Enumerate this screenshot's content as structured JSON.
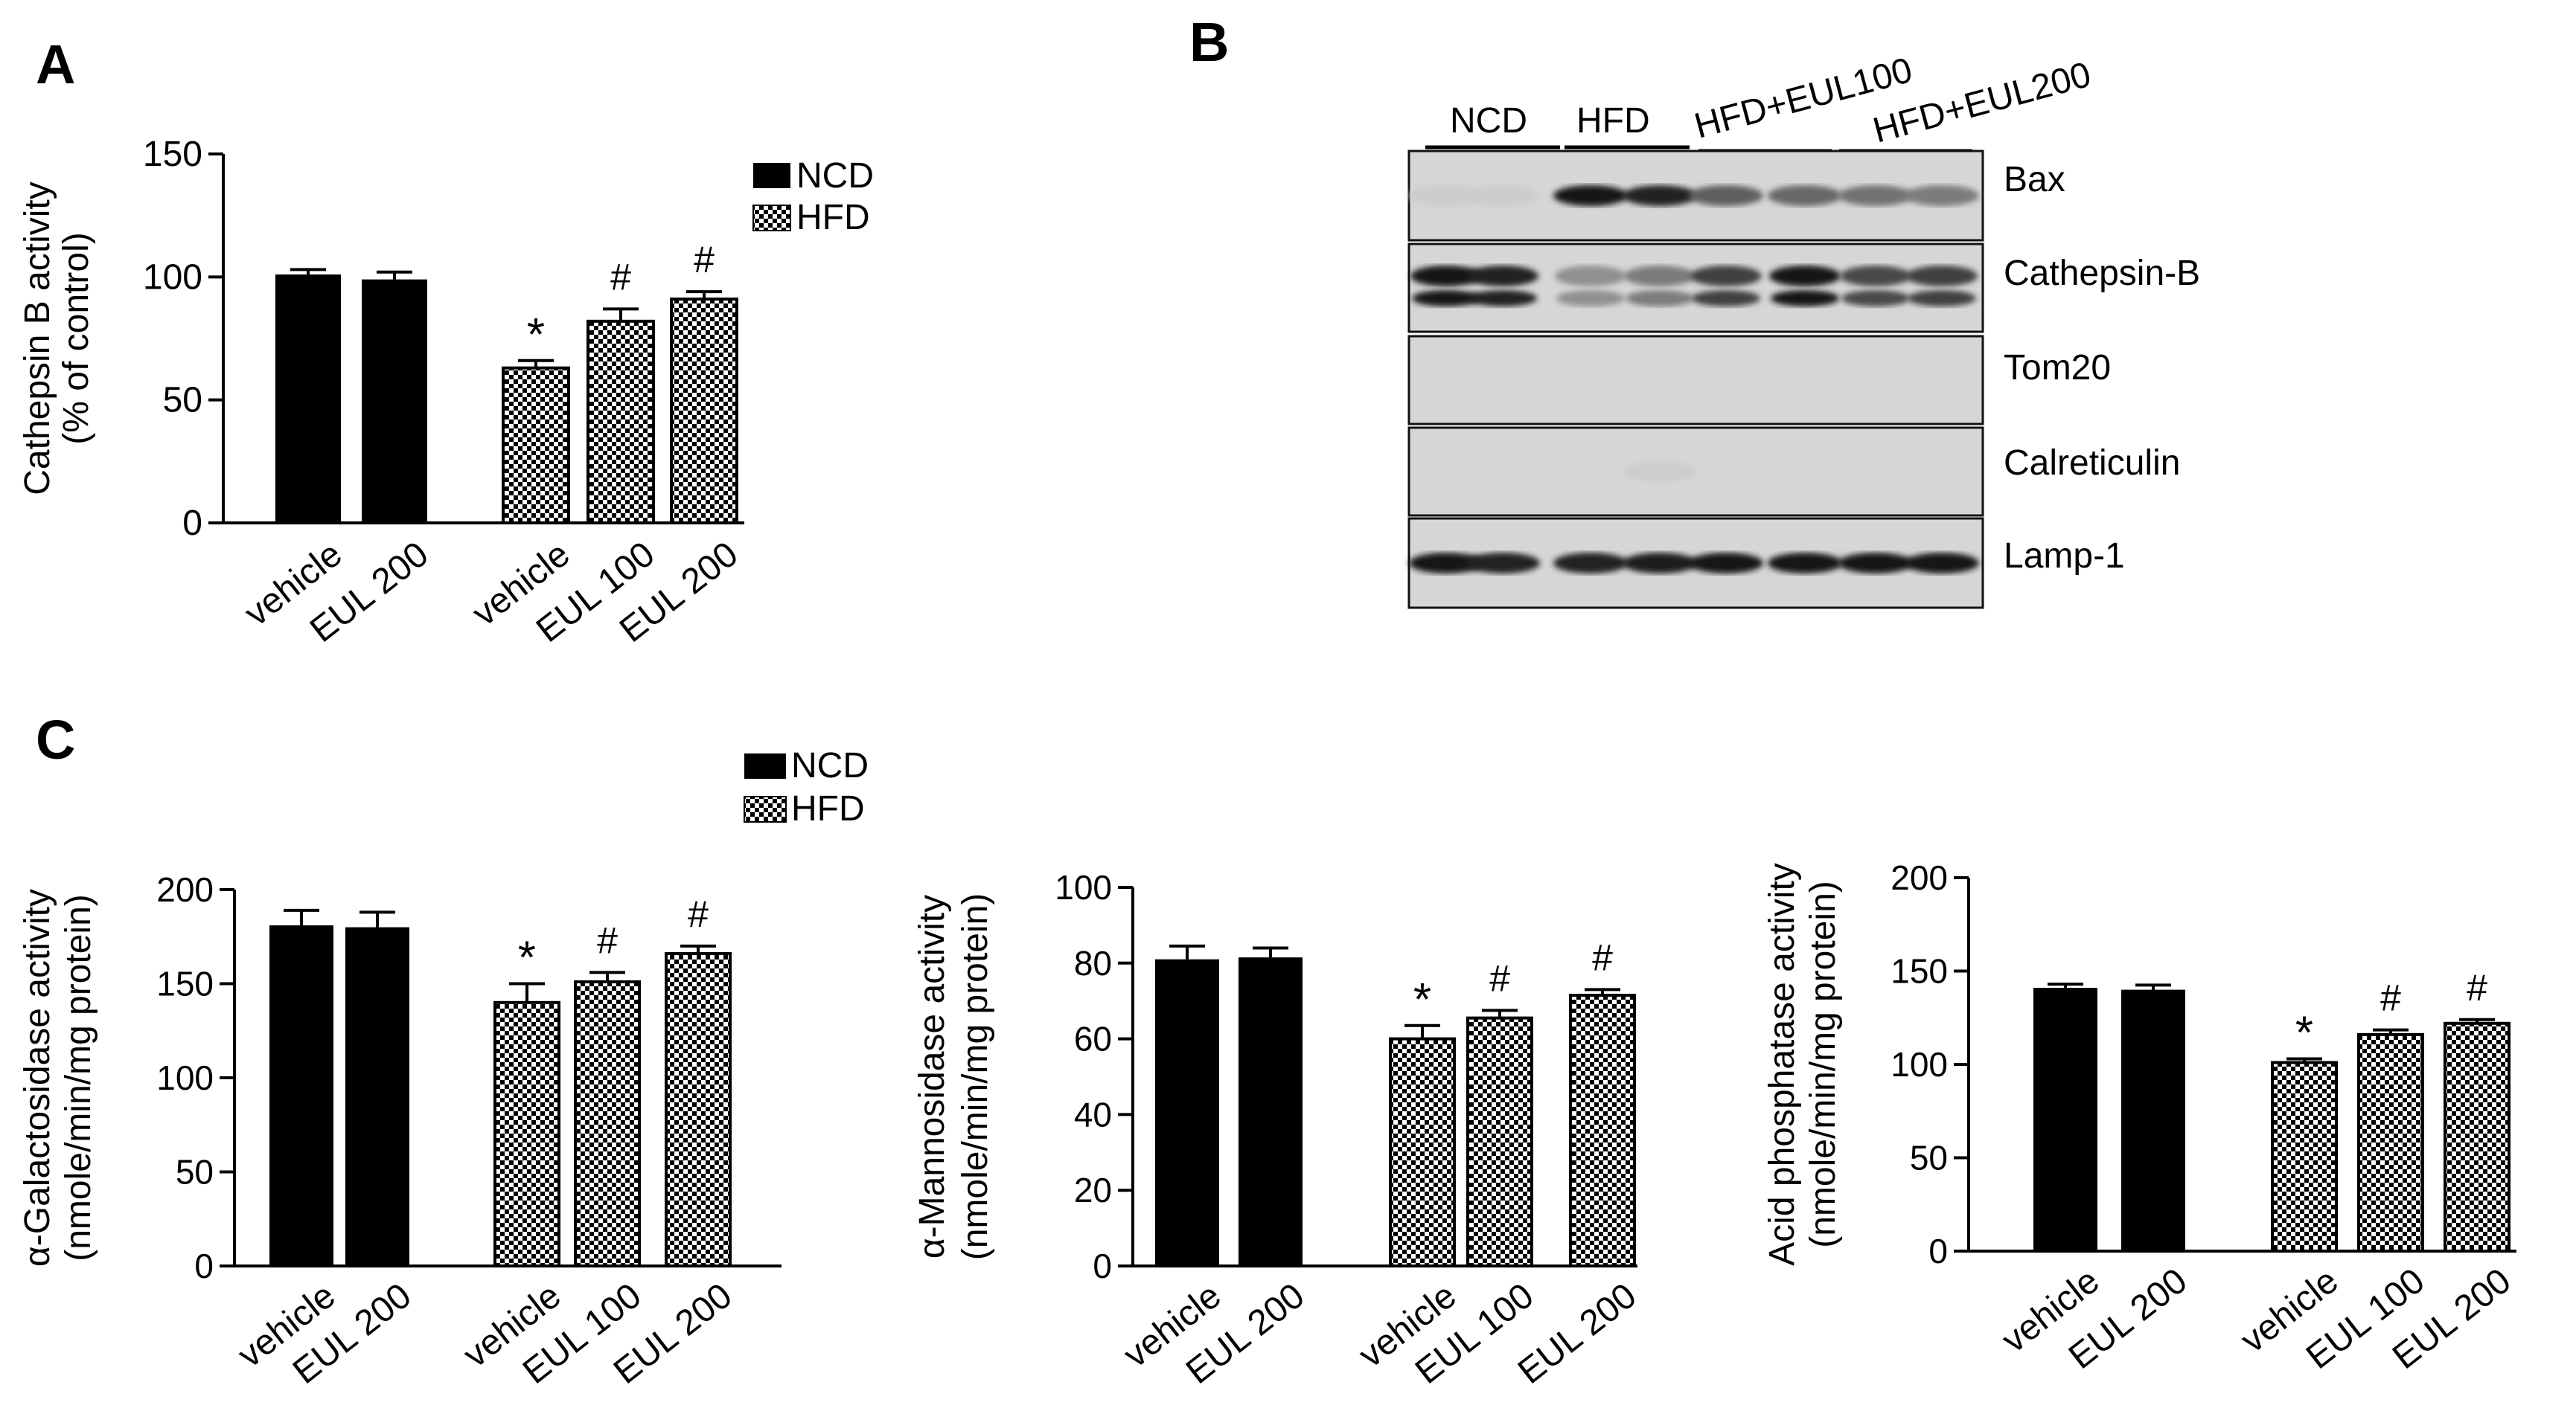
{
  "panels": {
    "a": "A",
    "b": "B",
    "c": "C"
  },
  "legend": {
    "ncd": "NCD",
    "hfd": "HFD"
  },
  "colors": {
    "ncd_fill": "#000000",
    "hfd_pattern": "black-white-checkerboard"
  },
  "chart_data": [
    {
      "id": "A",
      "type": "bar",
      "ylabel_line1": "Cathepsin B activity",
      "ylabel_line2": "(% of control)",
      "ylim": [
        0,
        150
      ],
      "yticks": [
        "0",
        "50",
        "100",
        "150"
      ],
      "categories": [
        "vehicle",
        "EUL 200",
        "vehicle",
        "EUL 100",
        "EUL 200"
      ],
      "groups": [
        "NCD",
        "NCD",
        "HFD",
        "HFD",
        "HFD"
      ],
      "values": [
        101,
        99,
        63,
        82,
        91
      ],
      "errors": [
        2,
        3,
        3,
        5,
        3
      ],
      "markers": [
        "",
        "",
        "*",
        "#",
        "#"
      ],
      "legend": "top-right"
    },
    {
      "id": "C1",
      "type": "bar",
      "ylabel_line1": "α-Galactosidase activity",
      "ylabel_line2": "(nmole/min/mg protein)",
      "ylim": [
        0,
        200
      ],
      "yticks": [
        "0",
        "50",
        "100",
        "150",
        "200"
      ],
      "categories": [
        "vehicle",
        "EUL 200",
        "vehicle",
        "EUL 100",
        "EUL 200"
      ],
      "groups": [
        "NCD",
        "NCD",
        "HFD",
        "HFD",
        "HFD"
      ],
      "values": [
        181,
        180,
        140,
        151,
        166
      ],
      "errors": [
        8,
        8,
        10,
        5,
        4
      ],
      "markers": [
        "",
        "",
        "*",
        "#",
        "#"
      ],
      "legend": "top-right"
    },
    {
      "id": "C2",
      "type": "bar",
      "ylabel_line1": "α-Mannosidase activity",
      "ylabel_line2": "(nmole/min/mg protein)",
      "ylim": [
        0,
        100
      ],
      "yticks": [
        "0",
        "20",
        "40",
        "60",
        "80",
        "100"
      ],
      "categories": [
        "vehicle",
        "EUL 200",
        "vehicle",
        "EUL 100",
        "EUL 200"
      ],
      "groups": [
        "NCD",
        "NCD",
        "HFD",
        "HFD",
        "HFD"
      ],
      "values": [
        81,
        81.5,
        60,
        65.5,
        71.5
      ],
      "errors": [
        3.5,
        2.5,
        3.5,
        2,
        1.5
      ],
      "markers": [
        "",
        "",
        "*",
        "#",
        "#"
      ]
    },
    {
      "id": "C3",
      "type": "bar",
      "ylabel_line1": "Acid phosphatase activity",
      "ylabel_line2": "(nmole/min/mg protein)",
      "ylim": [
        0,
        200
      ],
      "yticks": [
        "0",
        "50",
        "100",
        "150",
        "200"
      ],
      "categories": [
        "vehicle",
        "EUL 200",
        "vehicle",
        "EUL 100",
        "EUL 200"
      ],
      "groups": [
        "NCD",
        "NCD",
        "HFD",
        "HFD",
        "HFD"
      ],
      "values": [
        141,
        140,
        101,
        116,
        122
      ],
      "errors": [
        2,
        2.5,
        2,
        2.5,
        2
      ],
      "markers": [
        "",
        "",
        "*",
        "#",
        "#"
      ]
    }
  ],
  "blot": {
    "groups": [
      "NCD",
      "HFD",
      "HFD+EUL100",
      "HFD+EUL200"
    ],
    "rows": [
      {
        "label": "Bax",
        "intensity": [
          0.05,
          0.05,
          0.95,
          0.9,
          0.6,
          0.55,
          0.5,
          0.45
        ],
        "double": false
      },
      {
        "label": "Cathepsin-B",
        "intensity": [
          0.95,
          0.9,
          0.35,
          0.45,
          0.75,
          0.95,
          0.7,
          0.75
        ],
        "double": true
      },
      {
        "label": "Tom20",
        "intensity": [
          0,
          0,
          0,
          0,
          0,
          0,
          0,
          0
        ],
        "double": false
      },
      {
        "label": "Calreticulin",
        "intensity": [
          0,
          0,
          0,
          0.04,
          0,
          0,
          0,
          0
        ],
        "double": false
      },
      {
        "label": "Lamp-1",
        "intensity": [
          0.95,
          0.9,
          0.9,
          0.92,
          0.95,
          0.95,
          0.95,
          0.95
        ],
        "double": false
      }
    ]
  }
}
